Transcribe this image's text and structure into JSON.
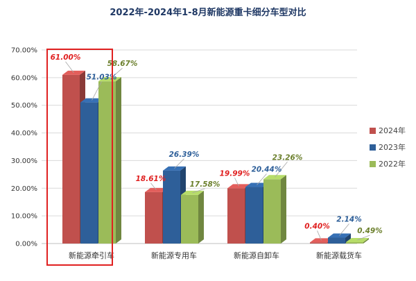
{
  "chart_data": {
    "type": "bar",
    "title": "2022年-2024年1-8月新能源重卡细分车型对比",
    "categories": [
      "新能源牵引车",
      "新能源专用车",
      "新能源自卸车",
      "新能源载货车"
    ],
    "ylim": [
      0,
      70
    ],
    "yticks": [
      0,
      10,
      20,
      30,
      40,
      50,
      60,
      70
    ],
    "ytick_labels": [
      "0.00%",
      "10.00%",
      "20.00%",
      "30.00%",
      "40.00%",
      "50.00%",
      "60.00%",
      "70.00%"
    ],
    "grid": true,
    "legend_position": "right",
    "highlight_category": "新能源牵引车",
    "highlight_color": "#e02020",
    "series": [
      {
        "name": "2024年",
        "color": "#c0504d",
        "label_color": "#e02020",
        "values": [
          61.0,
          18.61,
          19.99,
          0.4
        ],
        "labels": [
          "61.00%",
          "18.61%",
          "19.99%",
          "0.40%"
        ]
      },
      {
        "name": "2023年",
        "color": "#2e5f99",
        "label_color": "#2e5f99",
        "values": [
          51.03,
          26.39,
          20.44,
          2.14
        ],
        "labels": [
          "51.03%",
          "26.39%",
          "20.44%",
          "2.14%"
        ]
      },
      {
        "name": "2022年",
        "color": "#9bbb59",
        "label_color": "#6b7f2c",
        "values": [
          58.67,
          17.58,
          23.26,
          0.49
        ],
        "labels": [
          "58.67%",
          "17.58%",
          "23.26%",
          "0.49%"
        ]
      }
    ]
  }
}
